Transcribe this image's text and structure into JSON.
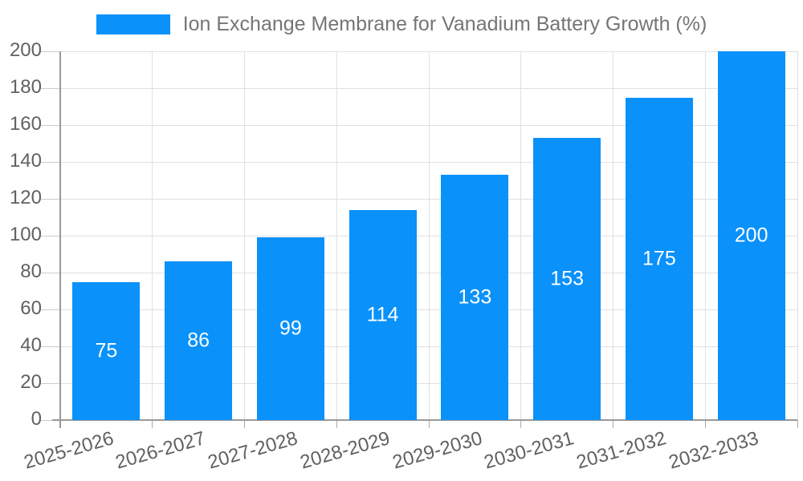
{
  "chart_data": {
    "type": "bar",
    "title": "Ion Exchange Membrane for Vanadium Battery Growth (%)",
    "legend": {
      "position": "top",
      "entries": [
        "Ion Exchange Membrane for Vanadium Battery Growth (%)"
      ]
    },
    "categories": [
      "2025-2026",
      "2026-2027",
      "2027-2028",
      "2028-2029",
      "2029-2030",
      "2030-2031",
      "2031-2032",
      "2032-2033"
    ],
    "values": [
      75,
      86,
      99,
      114,
      133,
      153,
      175,
      200
    ],
    "bar_labels": [
      "75",
      "86",
      "99",
      "114",
      "133",
      "153",
      "175",
      "200"
    ],
    "xlabel": "",
    "ylabel": "",
    "ylim": [
      0,
      200
    ],
    "ytick_step": 20,
    "ytick_labels": [
      "0",
      "20",
      "40",
      "60",
      "80",
      "100",
      "120",
      "140",
      "160",
      "180",
      "200"
    ],
    "grid": true,
    "xtick_label_rotation_deg": -16,
    "colors": {
      "bar": "#0a91fa",
      "bar_label_text": "#ffffff",
      "title_text": "#757575",
      "tick_text": "#616161",
      "gridline": "#e0e0e0",
      "axis": "#999999",
      "background": "#ffffff"
    }
  }
}
